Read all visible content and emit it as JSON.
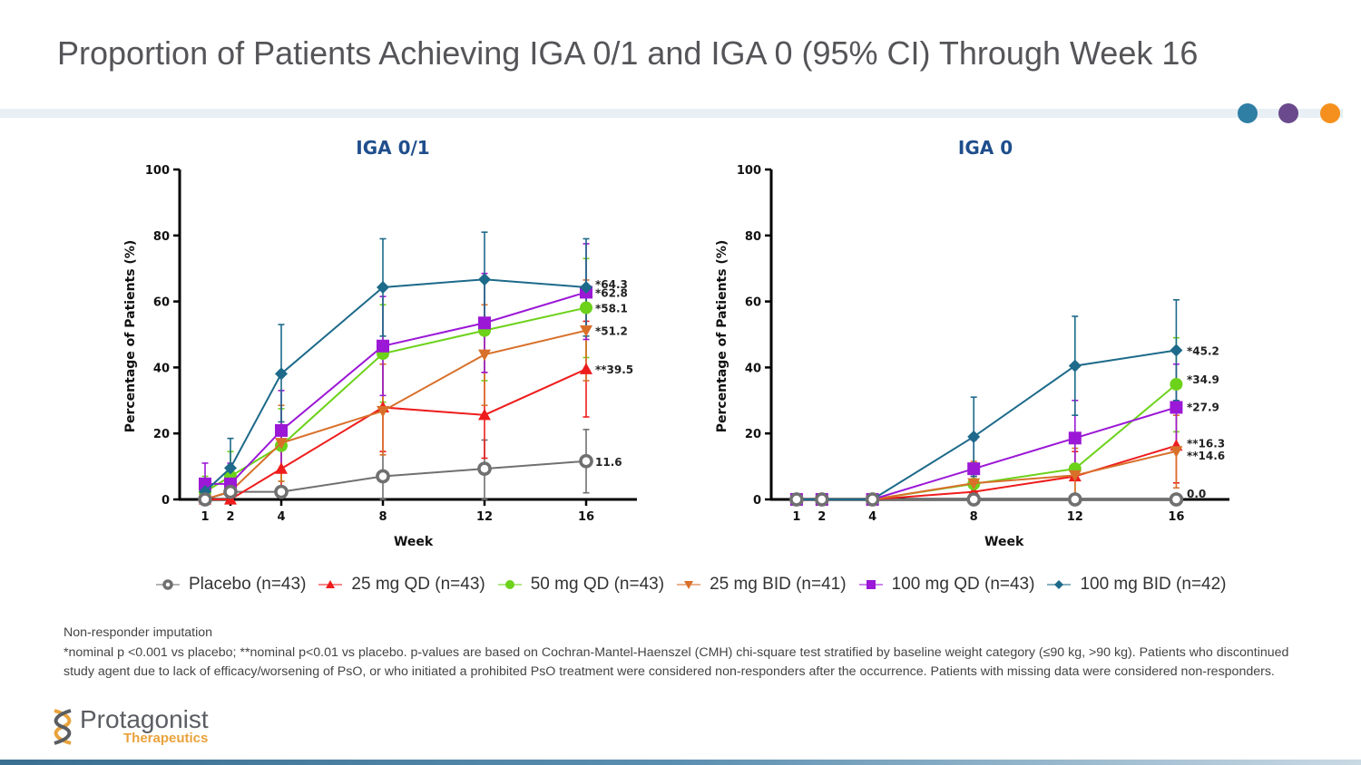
{
  "slide": {
    "title": "Proportion of Patients Achieving IGA 0/1 and IGA 0 (95% CI) Through Week 16",
    "dots": [
      {
        "name": "teal-dot",
        "color": "#2f7ea4"
      },
      {
        "name": "purple-dot",
        "color": "#6a4a8c"
      },
      {
        "name": "orange-dot",
        "color": "#f5901e"
      }
    ]
  },
  "legend": [
    {
      "label": "Placebo (n=43)",
      "color": "#707070",
      "marker": "open-circle"
    },
    {
      "label": "25 mg QD (n=43)",
      "color": "#ee1c1c",
      "marker": "triangle-up"
    },
    {
      "label": "50 mg QD (n=43)",
      "color": "#6cd21a",
      "marker": "circle"
    },
    {
      "label": "25 mg BID (n=41)",
      "color": "#d8702a",
      "marker": "triangle-down"
    },
    {
      "label": "100 mg QD (n=43)",
      "color": "#9b18d6",
      "marker": "square"
    },
    {
      "label": "100 mg BID (n=42)",
      "color": "#1d6a8a",
      "marker": "diamond"
    }
  ],
  "footnotes": {
    "line1": "Non-responder imputation",
    "line2": "*nominal p <0.001 vs placebo; **nominal p<0.01 vs placebo. p-values are based on Cochran-Mantel-Haenszel (CMH) chi-square test stratified by baseline weight category (≤90 kg, >90 kg). Patients who discontinued study agent due to lack of efficacy/worsening of PsO, or who initiated a prohibited PsO treatment were considered non-responders after the occurrence. Patients with missing data were considered non-responders."
  },
  "logo": {
    "name": "Protagonist",
    "sub": "Therapeutics"
  },
  "chart_data": [
    {
      "type": "line",
      "title": "IGA 0/1",
      "xlabel": "Week",
      "ylabel": "Percentage of Patients (%)",
      "x": [
        1,
        2,
        4,
        8,
        12,
        16
      ],
      "xticks": [
        "1",
        "2",
        "4",
        "8",
        "12",
        "16"
      ],
      "yticks": [
        "0",
        "20",
        "40",
        "60",
        "80",
        "100"
      ],
      "ylim": [
        0,
        100
      ],
      "xlim": [
        0,
        19
      ],
      "grid": false,
      "error_bars": "95% CI",
      "series": [
        {
          "name": "Placebo (n=43)",
          "values": [
            0,
            2.3,
            2.3,
            7.0,
            9.3,
            11.6
          ],
          "ci_upper": [
            null,
            null,
            null,
            14.5,
            18,
            21.2
          ],
          "ci_lower": [
            null,
            null,
            null,
            0,
            0,
            2
          ],
          "end_label": "11.6"
        },
        {
          "name": "25 mg QD (n=43)",
          "values": [
            0,
            0,
            9.3,
            27.9,
            25.6,
            39.5
          ],
          "ci_upper": [
            null,
            null,
            18,
            41,
            38.5,
            54
          ],
          "ci_lower": [
            null,
            null,
            1,
            14.5,
            12.5,
            25
          ],
          "end_label": "**39.5"
        },
        {
          "name": "50 mg QD (n=43)",
          "values": [
            2.3,
            7.0,
            16.3,
            44.2,
            51.2,
            58.1
          ],
          "ci_upper": [
            7,
            14.5,
            27.5,
            59,
            66,
            73
          ],
          "ci_lower": [
            null,
            0,
            5.5,
            29.5,
            36,
            43
          ],
          "end_label": "*58.1"
        },
        {
          "name": "25 mg BID (n=41)",
          "values": [
            0,
            2.4,
            17.1,
            26.8,
            43.9,
            51.2
          ],
          "ci_upper": [
            null,
            7,
            28.5,
            41,
            59,
            66.5
          ],
          "ci_lower": [
            null,
            null,
            5.5,
            13.5,
            28.5,
            36
          ],
          "end_label": "*51.2"
        },
        {
          "name": "100 mg QD (n=43)",
          "values": [
            4.7,
            4.7,
            20.9,
            46.5,
            53.5,
            62.8
          ],
          "ci_upper": [
            11,
            11,
            33,
            61.5,
            68.5,
            77.5
          ],
          "ci_lower": [
            null,
            null,
            9,
            31.5,
            38.5,
            48.5
          ],
          "end_label": "*62.8"
        },
        {
          "name": "100 mg BID (n=42)",
          "values": [
            2.4,
            9.5,
            38.1,
            64.3,
            66.7,
            64.3
          ],
          "ci_upper": [
            null,
            18.5,
            53,
            79,
            81,
            79
          ],
          "ci_lower": [
            null,
            1,
            23.5,
            49.5,
            52,
            49.5
          ],
          "end_label": "*64.3"
        }
      ]
    },
    {
      "type": "line",
      "title": "IGA 0",
      "xlabel": "Week",
      "ylabel": "Percentage of Patients (%)",
      "x": [
        1,
        2,
        4,
        8,
        12,
        16
      ],
      "xticks": [
        "1",
        "2",
        "4",
        "8",
        "12",
        "16"
      ],
      "yticks": [
        "0",
        "20",
        "40",
        "60",
        "80",
        "100"
      ],
      "ylim": [
        0,
        100
      ],
      "xlim": [
        0,
        19
      ],
      "grid": false,
      "error_bars": "95% CI",
      "series": [
        {
          "name": "Placebo (n=43)",
          "values": [
            0,
            0,
            0,
            0,
            0,
            0
          ],
          "ci_upper": [
            null,
            null,
            null,
            null,
            null,
            null
          ],
          "ci_lower": [
            null,
            null,
            null,
            null,
            null,
            null
          ],
          "end_label": "0.0"
        },
        {
          "name": "25 mg QD (n=43)",
          "values": [
            0,
            0,
            0,
            2.3,
            7.0,
            16.3
          ],
          "ci_upper": [
            null,
            null,
            null,
            7,
            14.5,
            27.5
          ],
          "ci_lower": [
            null,
            null,
            null,
            0,
            0,
            5
          ],
          "end_label": "**16.3"
        },
        {
          "name": "50 mg QD (n=43)",
          "values": [
            0,
            0,
            0,
            4.7,
            9.3,
            34.9
          ],
          "ci_upper": [
            null,
            null,
            null,
            11,
            17.5,
            49
          ],
          "ci_lower": [
            null,
            null,
            null,
            0,
            1,
            20.5
          ],
          "end_label": "*34.9"
        },
        {
          "name": "25 mg BID (n=41)",
          "values": [
            0,
            0,
            0,
            4.9,
            7.3,
            14.6
          ],
          "ci_upper": [
            null,
            null,
            null,
            11.5,
            15.5,
            25.5
          ],
          "ci_lower": [
            null,
            null,
            null,
            0,
            0,
            3.5
          ],
          "end_label": "**14.6"
        },
        {
          "name": "100 mg QD (n=43)",
          "values": [
            0,
            0,
            0,
            9.3,
            18.6,
            27.9
          ],
          "ci_upper": [
            null,
            null,
            null,
            18,
            30,
            41
          ],
          "ci_lower": [
            null,
            null,
            null,
            0.5,
            7,
            14.5
          ],
          "end_label": "*27.9"
        },
        {
          "name": "100 mg BID (n=42)",
          "values": [
            0,
            0,
            0,
            19.0,
            40.5,
            45.2
          ],
          "ci_upper": [
            null,
            null,
            null,
            31,
            55.5,
            60.5
          ],
          "ci_lower": [
            null,
            null,
            null,
            7,
            25.5,
            30
          ],
          "end_label": "*45.2"
        }
      ]
    }
  ]
}
